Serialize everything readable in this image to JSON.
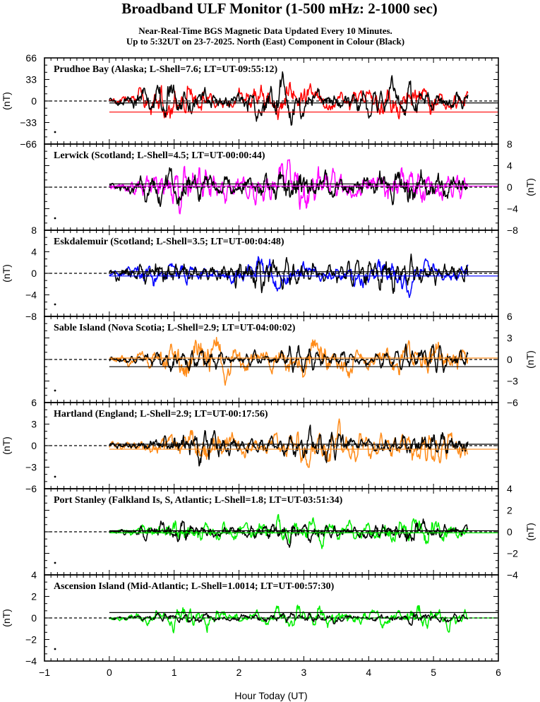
{
  "title": "Broadband ULF Monitor (1-500 mHz: 2-1000 sec)",
  "subtitle_line1": "Near-Real-Time BGS Magnetic Data Updated Every 10 Minutes.",
  "subtitle_line2": "Up to 5:32UT on 23-7-2025. North (East) Component in Colour (Black)",
  "xlabel": "Hour Today (UT)",
  "unit_label": "(nT)",
  "colors": {
    "red": "#ff0000",
    "magenta": "#ff00ff",
    "blue": "#0000ff",
    "orange": "#ff8c1a",
    "green": "#00ee00",
    "black": "#000000"
  },
  "chart_data": {
    "type": "line",
    "xlim": [
      -1,
      6
    ],
    "x_ticks": [
      -1,
      0,
      1,
      2,
      3,
      4,
      5,
      6
    ],
    "data_range_hours": [
      0,
      5.53
    ],
    "panels": [
      {
        "label": "Prudhoe Bay (Alaska; L-Shell=7.6; LT=UT-09:55:12)",
        "ylim": [
          -66,
          66
        ],
        "ticks": [
          -66,
          -33,
          0,
          33,
          66
        ],
        "tick_side": "left",
        "color": "red",
        "amplitude_north": 25,
        "amplitude_east": 28,
        "baseline_north": -17,
        "baseline_east": -3,
        "seed": 11
      },
      {
        "label": "Lerwick (Scotland; L-Shell=4.5; LT=UT-00:00:44)",
        "ylim": [
          -8,
          8
        ],
        "ticks": [
          -8,
          -4,
          0,
          4,
          8
        ],
        "tick_side": "right",
        "color": "magenta",
        "amplitude_north": 3.5,
        "amplitude_east": 3.0,
        "baseline_north": 0.2,
        "baseline_east": 0.6,
        "seed": 23
      },
      {
        "label": "Eskdalemuir (Scotland; L-Shell=3.5; LT=UT-00:04:48)",
        "ylim": [
          -8,
          8
        ],
        "ticks": [
          -8,
          -4,
          0,
          4,
          8
        ],
        "tick_side": "left",
        "color": "blue",
        "amplitude_north": 3.2,
        "amplitude_east": 3.0,
        "baseline_north": -0.5,
        "baseline_east": 0.3,
        "seed": 37
      },
      {
        "label": "Sable Island (Nova Scotia; L-Shell=2.9; LT=UT-04:00:02)",
        "ylim": [
          -6,
          6
        ],
        "ticks": [
          -6,
          -3,
          0,
          3,
          6
        ],
        "tick_side": "right",
        "color": "orange",
        "amplitude_north": 3.0,
        "amplitude_east": 1.6,
        "baseline_north": 0.2,
        "baseline_east": -1.0,
        "seed": 41
      },
      {
        "label": "Hartland (England; L-Shell=2.9; LT=UT-00:17:56)",
        "ylim": [
          -6,
          6
        ],
        "ticks": [
          -6,
          -3,
          0,
          3,
          6
        ],
        "tick_side": "left",
        "color": "orange",
        "amplitude_north": 2.5,
        "amplitude_east": 1.8,
        "baseline_north": -0.5,
        "baseline_east": 0.2,
        "seed": 53
      },
      {
        "label": "Port Stanley (Falkland Is, S, Atlantic; L-Shell=1.8; LT=UT-03:51:34)",
        "ylim": [
          -4,
          4
        ],
        "ticks": [
          -4,
          -2,
          0,
          2,
          4
        ],
        "tick_side": "right",
        "color": "green",
        "amplitude_north": 1.3,
        "amplitude_east": 0.9,
        "baseline_north": -0.1,
        "baseline_east": 0.1,
        "seed": 67
      },
      {
        "label": "Ascension Island (Mid-Atlantic; L-Shell=1.0014; LT=UT-00:57:30)",
        "ylim": [
          -4,
          4
        ],
        "ticks": [
          -4,
          -2,
          0,
          2,
          4
        ],
        "tick_side": "left",
        "color": "green",
        "amplitude_north": 1.0,
        "amplitude_east": 0.5,
        "baseline_north": 0.0,
        "baseline_east": 0.5,
        "seed": 79
      }
    ]
  }
}
